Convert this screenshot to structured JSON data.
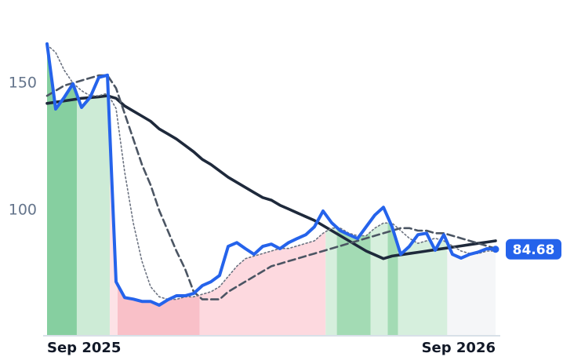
{
  "chart_data": {
    "type": "line",
    "x": [
      0,
      1,
      2,
      3,
      4,
      5,
      6,
      7,
      8,
      9,
      10,
      11,
      12,
      13,
      14,
      15,
      16,
      17,
      18,
      19,
      20,
      21,
      22,
      23,
      24,
      25,
      26,
      27,
      28,
      29,
      30,
      31,
      32,
      33,
      34,
      35,
      36,
      37,
      38,
      39,
      40,
      41,
      42,
      43,
      44,
      45,
      46,
      47,
      48,
      49,
      50,
      51,
      52
    ],
    "xlim": [
      0,
      52
    ],
    "xticks": [
      {
        "value": 0,
        "label": "Sep 2025"
      },
      {
        "value": 52,
        "label": "Sep 2026"
      }
    ],
    "ylim": [
      51,
      170
    ],
    "yticks": [
      100,
      150
    ],
    "grid": false,
    "series": [
      {
        "color": "#2563eb",
        "style": "price",
        "values": [
          165.4,
          139.8,
          144.4,
          149.7,
          140.4,
          144.4,
          152.2,
          153.1,
          71.9,
          65.7,
          65.1,
          64.2,
          64.2,
          62.7,
          64.8,
          66.4,
          66.4,
          67.3,
          70.4,
          71.9,
          74.4,
          85.8,
          87.3,
          84.9,
          82.7,
          85.8,
          86.7,
          84.9,
          87.3,
          88.9,
          90.4,
          93.5,
          99.7,
          95.1,
          92.0,
          90.4,
          88.9,
          93.5,
          98.1,
          101.2,
          93.5,
          82.7,
          85.8,
          90.4,
          91.0,
          84.3,
          90.4,
          82.7,
          81.2,
          82.7,
          83.6,
          84.9,
          84.68
        ]
      },
      {
        "color": "#6b7280",
        "style": "dotted",
        "values": [
          165,
          162,
          155,
          150,
          147,
          145,
          145,
          146,
          140,
          115,
          95,
          80,
          70,
          66,
          65,
          65,
          66,
          66,
          67,
          68,
          70,
          74,
          78,
          81,
          82,
          83,
          84,
          85,
          85,
          86,
          87,
          88,
          91,
          93,
          93,
          91,
          90,
          90,
          93,
          95,
          95,
          92,
          89,
          87,
          88,
          89,
          88,
          86,
          84,
          83,
          83,
          84,
          84
        ]
      },
      {
        "color": "#4b5563",
        "style": "dashed",
        "values": [
          145,
          147,
          149,
          150,
          151,
          152,
          153,
          153,
          148,
          138,
          128,
          118,
          110,
          100,
          92,
          84,
          77,
          68,
          65,
          65,
          65,
          68,
          70,
          72,
          74,
          76,
          78,
          79,
          80,
          81,
          82,
          83,
          84,
          85,
          86,
          87,
          88,
          89,
          90,
          91,
          92,
          93,
          93,
          92,
          92,
          91,
          91,
          90,
          89,
          88,
          87,
          86,
          85
        ]
      },
      {
        "color": "#1e293b",
        "style": "solid",
        "values": [
          142,
          142.5,
          143,
          143.5,
          144,
          144.3,
          144.6,
          145,
          144,
          141,
          139,
          137,
          135,
          132,
          130,
          128,
          125.5,
          123,
          120,
          118,
          115.5,
          113,
          111,
          109,
          107,
          105,
          104,
          102,
          100.5,
          99,
          97.5,
          96,
          94,
          92,
          90,
          88,
          86,
          84,
          82.5,
          81,
          82,
          82.5,
          83,
          83.5,
          84,
          84.5,
          85,
          85.5,
          86,
          86.5,
          87,
          87.5,
          88
        ]
      }
    ],
    "regions": [
      {
        "start": 0,
        "end": 3.45,
        "color": "#86cfa0"
      },
      {
        "start": 3.45,
        "end": 7.27,
        "color": "#cdebd6"
      },
      {
        "start": 7.27,
        "end": 8.18,
        "color": "#fde2e6"
      },
      {
        "start": 8.18,
        "end": 17.7,
        "color": "#f9c0c8"
      },
      {
        "start": 17.7,
        "end": 32.3,
        "color": "#fdd9df"
      },
      {
        "start": 32.3,
        "end": 33.6,
        "color": "#d6efdd"
      },
      {
        "start": 33.6,
        "end": 37.5,
        "color": "#a3dbb4"
      },
      {
        "start": 37.5,
        "end": 39.5,
        "color": "#d6efdd"
      },
      {
        "start": 39.5,
        "end": 40.7,
        "color": "#a3dbb4"
      },
      {
        "start": 40.7,
        "end": 46.4,
        "color": "#d6efdd"
      },
      {
        "start": 46.4,
        "end": 52,
        "color": "#f5f6f8"
      }
    ]
  }
}
